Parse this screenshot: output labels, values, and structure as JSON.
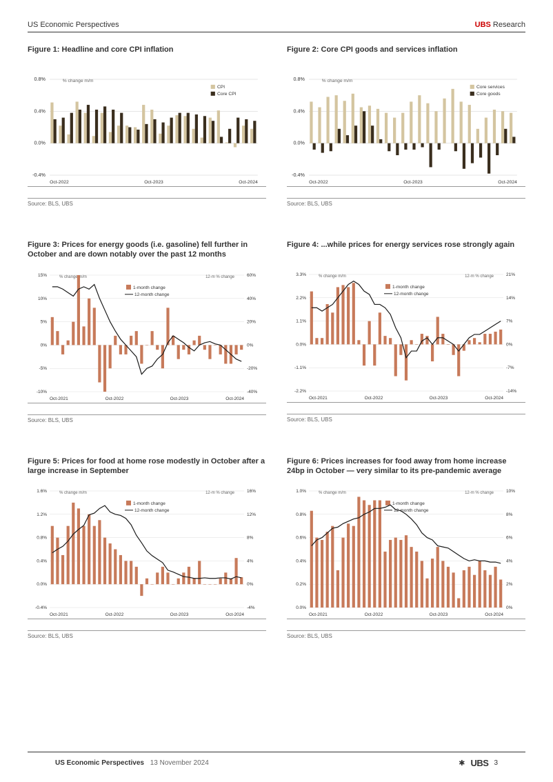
{
  "header": {
    "left": "US Economic Perspectives",
    "right_brand": "UBS",
    "right_text": " Research"
  },
  "footer": {
    "left": "US Economic Perspectives",
    "date": "13 November 2024",
    "brand": "UBS",
    "page": "3"
  },
  "colors": {
    "cpi": "#d4c5a0",
    "core_cpi": "#3a2e1e",
    "core_services": "#d4c5a0",
    "core_goods": "#3a2e1e",
    "month_bar": "#c77a5a",
    "line": "#1a1a1a"
  },
  "fig1": {
    "title": "Figure 1: Headline and core CPI inflation",
    "source": "Source: BLS, UBS",
    "y_label": "% change m/m",
    "legend": [
      "CPI",
      "Core CPI"
    ],
    "ylim": [
      -0.4,
      0.8
    ],
    "yticks": [
      -0.4,
      0.0,
      0.4,
      0.8
    ],
    "x_labels": [
      "Oct-2022",
      "Oct-2023",
      "Oct-2024"
    ],
    "cpi": [
      0.51,
      0.22,
      0.11,
      0.52,
      0.38,
      0.09,
      0.38,
      0.14,
      0.22,
      0.22,
      0.2,
      0.48,
      0.42,
      0.12,
      0.22,
      0.35,
      0.34,
      0.18,
      0.07,
      0.32,
      0.41,
      0.01,
      -0.05,
      0.22,
      0.18
    ],
    "core_cpi": [
      0.3,
      0.32,
      0.38,
      0.42,
      0.48,
      0.42,
      0.46,
      0.42,
      0.38,
      0.2,
      0.17,
      0.24,
      0.3,
      0.26,
      0.32,
      0.38,
      0.38,
      0.36,
      0.34,
      0.28,
      0.08,
      0.18,
      0.32,
      0.3,
      0.28
    ]
  },
  "fig2": {
    "title": "Figure 2: Core CPI goods and services inflation",
    "source": "Source: BLS, UBS",
    "y_label": "% change m/m",
    "legend": [
      "Core services",
      "Core goods"
    ],
    "ylim": [
      -0.4,
      0.8
    ],
    "yticks": [
      -0.4,
      0.0,
      0.4,
      0.8
    ],
    "x_labels": [
      "Oct-2022",
      "Oct-2023",
      "Oct-2024"
    ],
    "services": [
      0.52,
      0.45,
      0.58,
      0.6,
      0.53,
      0.62,
      0.45,
      0.47,
      0.43,
      0.38,
      0.32,
      0.38,
      0.52,
      0.6,
      0.5,
      0.4,
      0.56,
      0.68,
      0.52,
      0.48,
      0.18,
      0.32,
      0.42,
      0.4,
      0.38
    ],
    "goods": [
      -0.08,
      -0.12,
      -0.1,
      0.18,
      0.1,
      0.22,
      0.4,
      0.22,
      0.05,
      -0.1,
      -0.15,
      -0.08,
      -0.08,
      -0.05,
      -0.3,
      -0.08,
      0.0,
      -0.1,
      -0.32,
      -0.25,
      -0.18,
      -0.38,
      -0.15,
      0.18,
      0.08
    ]
  },
  "fig3": {
    "title": "Figure 3: Prices for energy goods (i.e. gasoline) fell further in October and are down notably over the past 12 months",
    "source": "Source: BLS, UBS",
    "y_label_l": "% change m/m",
    "y_label_r": "12-m % change",
    "legend": [
      "1-month change",
      "12-month change"
    ],
    "ylim_l": [
      -10,
      15
    ],
    "yticks_l": [
      -10,
      -5,
      0,
      5,
      10,
      15
    ],
    "ylim_r": [
      -40,
      60
    ],
    "yticks_r": [
      -40,
      -20,
      0,
      20,
      40,
      60
    ],
    "x_labels": [
      "Oct-2021",
      "Oct-2022",
      "Oct-2023",
      "Oct-2024"
    ],
    "bars": [
      6,
      3,
      -2,
      1,
      5,
      15,
      4,
      10,
      8,
      -8,
      -10,
      -5,
      2,
      -2,
      -2,
      2,
      3,
      -4,
      0,
      3,
      -1,
      -5,
      8,
      2,
      -3,
      -1,
      -2,
      1,
      2,
      -1,
      -3,
      0,
      -2,
      -4,
      -4,
      -2,
      -1
    ],
    "line": [
      50,
      50,
      48,
      45,
      42,
      48,
      50,
      48,
      52,
      40,
      30,
      20,
      12,
      5,
      0,
      -5,
      -10,
      -25,
      -20,
      -18,
      -12,
      -8,
      2,
      8,
      5,
      2,
      -2,
      -5,
      0,
      2,
      3,
      1,
      0,
      -4,
      -8,
      -12,
      -14
    ]
  },
  "fig4": {
    "title": "Figure 4: ...while prices for energy services rose strongly again",
    "source": "Source: BLS, UBS",
    "y_label_l": "% change m/m",
    "y_label_r": "12-m % change",
    "legend": [
      "1-month change",
      "12-month change"
    ],
    "ylim_l": [
      -2.2,
      3.3
    ],
    "yticks_l": [
      -2.2,
      -1.1,
      0.0,
      1.1,
      2.2,
      3.3
    ],
    "ylim_r": [
      -14,
      21
    ],
    "yticks_r": [
      -14,
      -7,
      0,
      7,
      14,
      21
    ],
    "x_labels": [
      "Oct-2021",
      "Oct-2022",
      "Oct-2023",
      "Oct-2024"
    ],
    "bars": [
      2.5,
      0.3,
      0.3,
      1.9,
      1.5,
      2.7,
      2.8,
      2.7,
      2.9,
      0.2,
      -1.0,
      1.1,
      -1.0,
      1.5,
      0.4,
      0.3,
      -1.5,
      -0.5,
      -1.7,
      0.2,
      0.0,
      0.5,
      0.4,
      -0.8,
      1.3,
      0.5,
      0.0,
      -0.5,
      -1.5,
      -0.3,
      0.2,
      0.3,
      0.1,
      0.5,
      0.5,
      0.6,
      0.7
    ],
    "line": [
      11,
      11,
      10,
      11,
      12,
      14,
      16,
      18,
      19,
      18,
      16,
      15,
      12,
      12,
      11,
      9,
      5,
      2,
      -4,
      -2,
      -2,
      1,
      2,
      0,
      2,
      2,
      1,
      0,
      -2,
      0,
      2,
      3,
      3,
      4,
      5,
      6,
      7
    ]
  },
  "fig5": {
    "title": "Figure 5: Prices for food at home rose modestly in October after a large increase in September",
    "source": "Source: BLS, UBS",
    "y_label_l": "% change m/m",
    "y_label_r": "12-m % change",
    "legend": [
      "1-month change",
      "12-month change"
    ],
    "ylim_l": [
      -0.4,
      1.6
    ],
    "yticks_l": [
      -0.4,
      0.0,
      0.4,
      0.8,
      1.2,
      1.6
    ],
    "ylim_r": [
      -4,
      16
    ],
    "yticks_r": [
      -4,
      0,
      4,
      8,
      12,
      16
    ],
    "x_labels": [
      "Oct-2021",
      "Oct-2022",
      "Oct-2023",
      "Oct-2024"
    ],
    "bars": [
      1.0,
      0.8,
      0.5,
      1.0,
      1.4,
      1.3,
      1.0,
      1.2,
      1.0,
      1.1,
      0.8,
      0.7,
      0.6,
      0.5,
      0.4,
      0.4,
      0.3,
      -0.2,
      0.1,
      0.0,
      0.2,
      0.3,
      0.2,
      0.0,
      0.1,
      0.2,
      0.3,
      0.1,
      0.4,
      0.0,
      0.0,
      0.0,
      0.1,
      0.2,
      0.1,
      0.45,
      0.12
    ],
    "line": [
      5.4,
      6.0,
      6.5,
      7.4,
      8.6,
      9.4,
      10.1,
      11.9,
      12.2,
      13.0,
      13.5,
      12.4,
      12.0,
      11.8,
      11.3,
      10.2,
      8.4,
      7.1,
      5.7,
      4.9,
      4.3,
      3.7,
      2.4,
      2.1,
      1.7,
      1.3,
      1.2,
      1.0,
      1.0,
      1.1,
      1.0,
      1.0,
      1.1,
      1.1,
      0.9,
      1.3,
      1.1
    ]
  },
  "fig6": {
    "title": "Figure 6: Prices increases for food away from home increase 24bp in October — very similar to its pre-pandemic average",
    "source": "Source: BLS, UBS",
    "y_label_l": "% change m/m",
    "y_label_r": "12-m % change",
    "legend": [
      "1-month change",
      "12-month change"
    ],
    "ylim_l": [
      0.0,
      1.0
    ],
    "yticks_l": [
      0.0,
      0.2,
      0.4,
      0.6,
      0.8,
      1.0
    ],
    "ylim_r": [
      0,
      10
    ],
    "yticks_r": [
      0,
      2,
      4,
      6,
      8,
      10
    ],
    "x_labels": [
      "Oct-2021",
      "Oct-2022",
      "Oct-2023",
      "Oct-2024"
    ],
    "bars": [
      0.83,
      0.6,
      0.58,
      0.65,
      0.7,
      0.32,
      0.6,
      0.72,
      0.7,
      0.95,
      0.92,
      0.88,
      0.92,
      0.92,
      0.48,
      0.58,
      0.6,
      0.58,
      0.62,
      0.52,
      0.48,
      0.4,
      0.25,
      0.42,
      0.52,
      0.4,
      0.35,
      0.3,
      0.08,
      0.32,
      0.35,
      0.28,
      0.4,
      0.32,
      0.28,
      0.35,
      0.24
    ],
    "line": [
      5.3,
      5.8,
      6.0,
      6.4,
      6.8,
      6.9,
      7.2,
      7.4,
      7.6,
      7.7,
      8.0,
      8.2,
      8.5,
      8.5,
      8.6,
      8.8,
      8.4,
      8.3,
      8.0,
      7.6,
      7.1,
      6.4,
      6.0,
      5.8,
      5.3,
      5.2,
      5.1,
      4.8,
      4.5,
      4.2,
      4.0,
      4.1,
      4.0,
      4.0,
      3.9,
      3.9,
      3.8
    ]
  }
}
